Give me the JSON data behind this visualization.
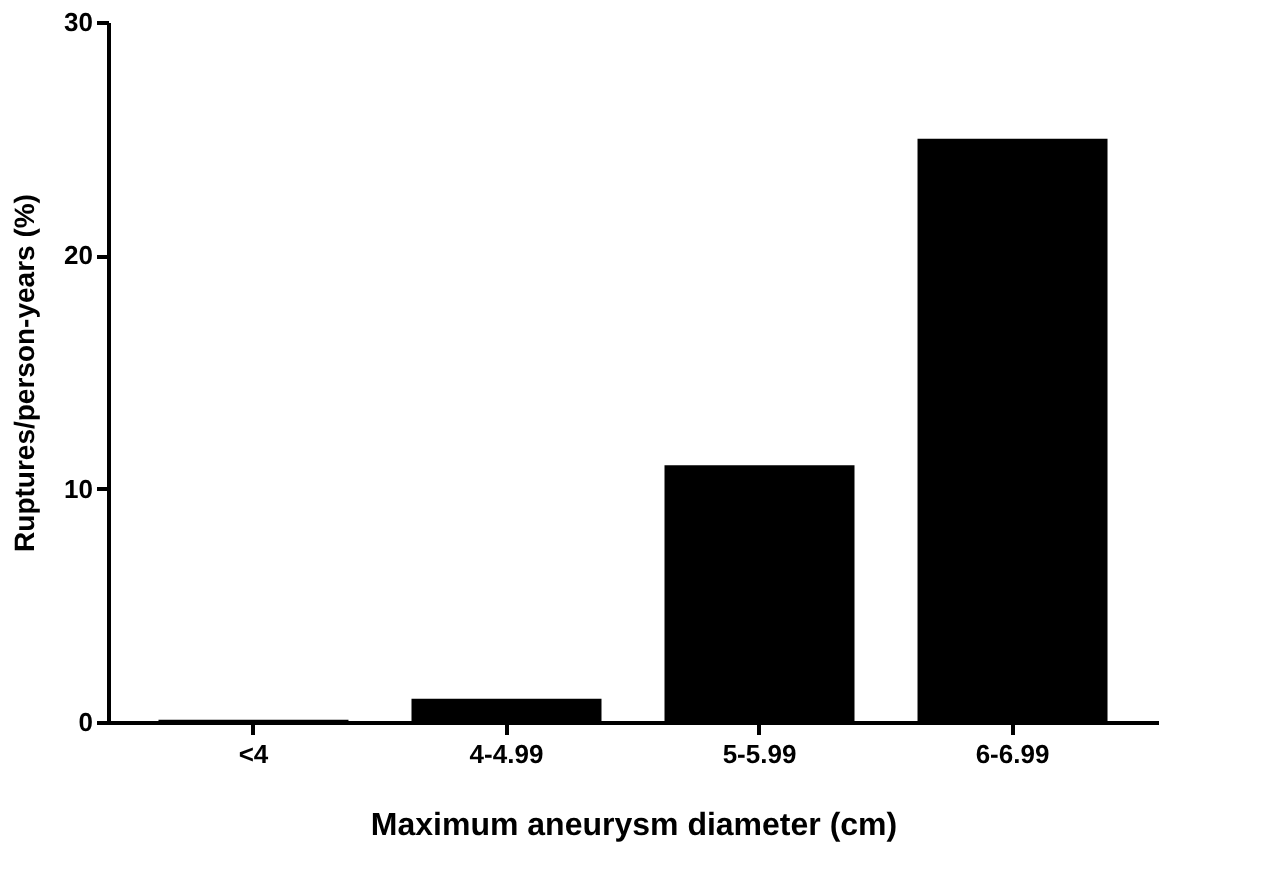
{
  "chart_data": {
    "type": "bar",
    "xlabel": "Maximum aneurysm diameter (cm)",
    "ylabel": "Ruptures/person-years (%)",
    "categories": [
      "<4",
      "4-4.99",
      "5-5.99",
      "6-6.99"
    ],
    "values": [
      0.1,
      1,
      11,
      25
    ],
    "color": "#000000",
    "ylim": [
      0,
      30
    ],
    "yticks": [
      0,
      10,
      20,
      30
    ],
    "grid": false
  }
}
